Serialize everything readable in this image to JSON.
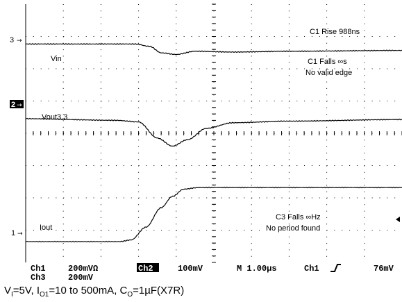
{
  "chart_data": {
    "type": "line",
    "xlabel": "",
    "ylabel": "",
    "series": [
      {
        "name": "Vin",
        "values": [
          [
            0,
            0.2
          ],
          [
            2.9,
            0.2
          ],
          [
            3.3,
            0.05
          ],
          [
            3.6,
            -0.35
          ],
          [
            4.0,
            -0.45
          ],
          [
            4.5,
            -0.25
          ],
          [
            5.5,
            -0.3
          ],
          [
            7,
            -0.25
          ],
          [
            10,
            -0.2
          ]
        ]
      },
      {
        "name": "Vout3.3",
        "values": [
          [
            0,
            -0.3
          ],
          [
            2.4,
            -0.4
          ],
          [
            3.0,
            -0.5
          ],
          [
            3.5,
            -1.5
          ],
          [
            3.9,
            -2.0
          ],
          [
            4.3,
            -1.6
          ],
          [
            4.8,
            -0.9
          ],
          [
            5.5,
            -0.55
          ],
          [
            7,
            -0.45
          ],
          [
            10,
            -0.35
          ]
        ]
      },
      {
        "name": "Iout",
        "values": [
          [
            0,
            0
          ],
          [
            2.5,
            0
          ],
          [
            2.8,
            0.1
          ],
          [
            3.2,
            0.9
          ],
          [
            3.6,
            2.1
          ],
          [
            3.9,
            2.8
          ],
          [
            4.2,
            3.25
          ],
          [
            4.6,
            3.35
          ],
          [
            10,
            3.35
          ]
        ]
      }
    ],
    "annotations": {
      "c1_rise": "C1 Rise 988ns",
      "c1_falls": "C1 Falls ∞s",
      "no_valid_edge": "No valid edge",
      "c3_falls": "C3 Falls ∞Hz",
      "no_period": "No period found"
    },
    "channel_markers": [
      "3",
      "2",
      "1"
    ],
    "readout": {
      "ch1": "Ch1",
      "ch1_scale": "200mVΩ",
      "ch2": "Ch2",
      "ch2_scale": "100mV",
      "timebase": "M 1.00µs",
      "trigger_src": "Ch1",
      "trigger_level": "76mV",
      "ch3": "Ch3",
      "ch3_scale": "200mV"
    }
  },
  "caption": {
    "p1": "V",
    "s1": "I",
    "p2": "=5V, I",
    "s2": "O1",
    "p3": "=10 to 500mA, C",
    "s3": "O",
    "p4": "=1µF(X7R)"
  }
}
